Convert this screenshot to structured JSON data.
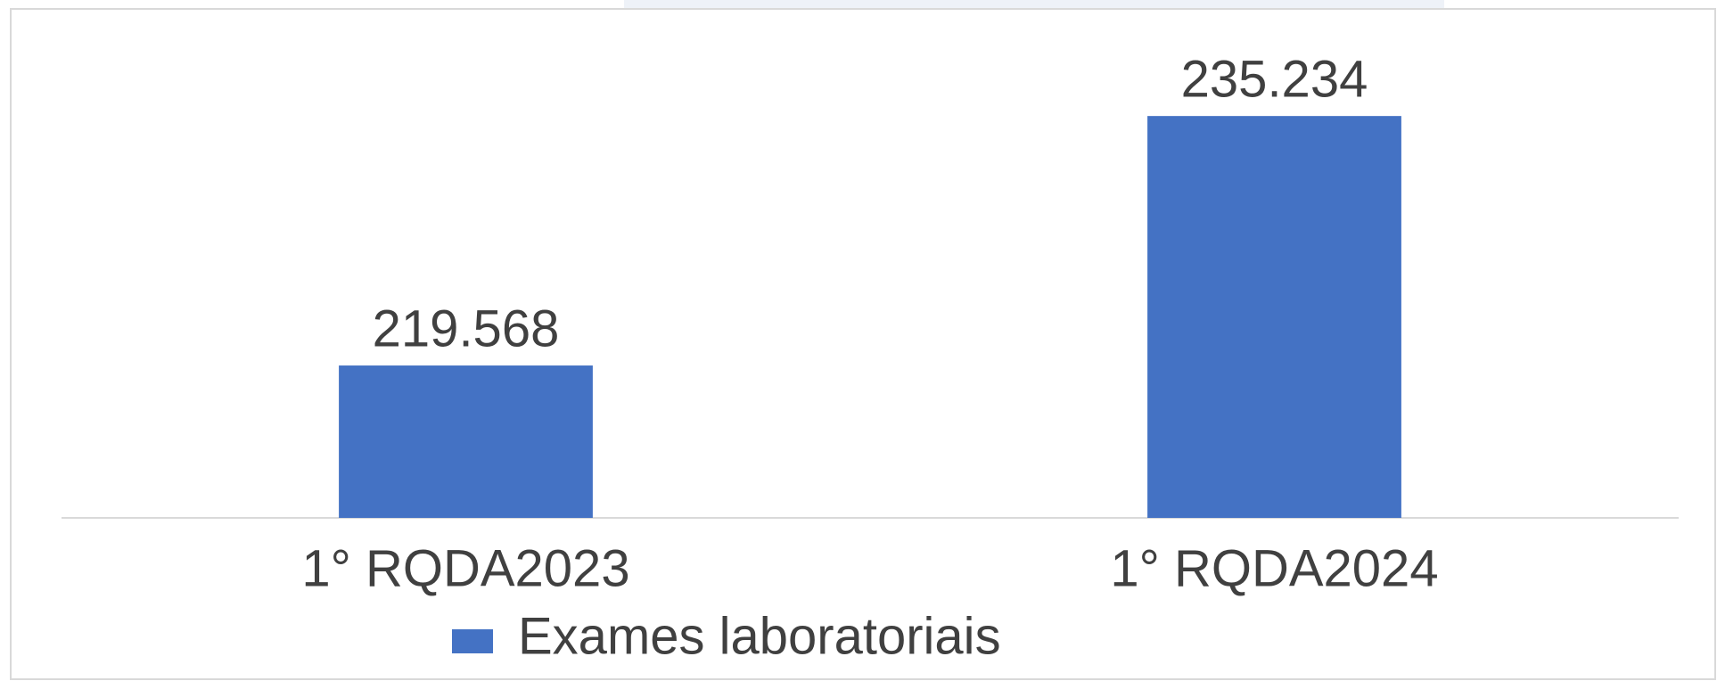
{
  "chart_data": {
    "type": "bar",
    "categories": [
      "1° RQDA2023",
      "1° RQDA2024"
    ],
    "series": [
      {
        "name": "Exames laboratoriais",
        "color": "#4472c4",
        "values": [
          219568,
          235234
        ],
        "value_labels": [
          "219.568",
          "235.234"
        ]
      }
    ],
    "ylim": [
      210000,
      240000
    ],
    "legend": "bottom"
  }
}
